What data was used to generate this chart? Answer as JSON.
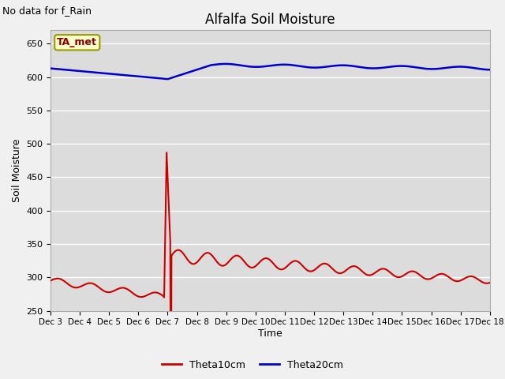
{
  "title": "Alfalfa Soil Moisture",
  "subtitle": "No data for f_Rain",
  "ylabel": "Soil Moisture",
  "xlabel": "Time",
  "ylim": [
    250,
    670
  ],
  "yticks": [
    250,
    300,
    350,
    400,
    450,
    500,
    550,
    600,
    650
  ],
  "bg_color": "#dcdcdc",
  "fig_color": "#f0f0f0",
  "legend_label": "TA_met",
  "line1_color": "#cc0000",
  "line2_color": "#0000cc",
  "line1_name": "Theta10cm",
  "line2_name": "Theta20cm",
  "x_tick_labels": [
    "Dec 3",
    "Dec 4",
    "Dec 5",
    "Dec 6",
    "Dec 7",
    "Dec 8",
    "Dec 9",
    "Dec 10",
    "Dec 11",
    "Dec 12",
    "Dec 13",
    "Dec 14",
    "Dec 15",
    "Dec 16",
    "Dec 17",
    "Dec 18"
  ],
  "n_days": 15,
  "points_per_day": 48
}
